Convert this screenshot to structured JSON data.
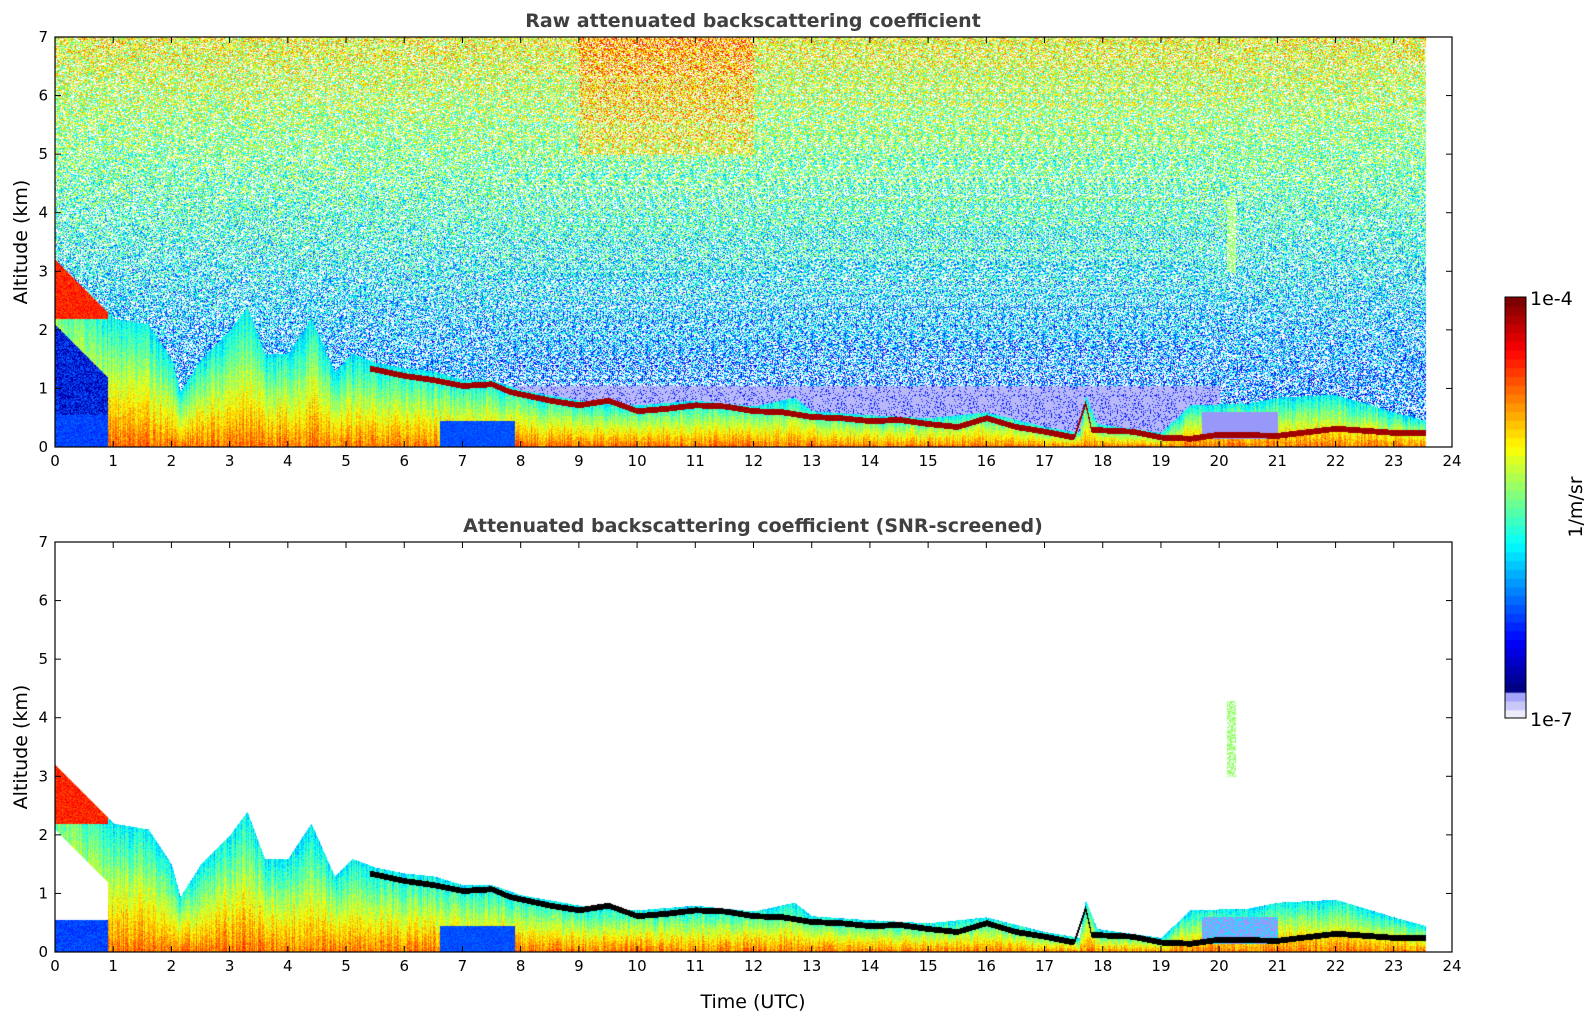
{
  "chart_data": [
    {
      "type": "heatmap",
      "title": "Raw attenuated backscattering coefficient",
      "xlabel": "",
      "ylabel": "Altitude (km)",
      "xlim": [
        0,
        24
      ],
      "ylim": [
        0,
        7
      ],
      "xticks": [
        "0",
        "1",
        "2",
        "3",
        "4",
        "5",
        "6",
        "7",
        "8",
        "9",
        "10",
        "11",
        "12",
        "13",
        "14",
        "15",
        "16",
        "17",
        "18",
        "19",
        "20",
        "21",
        "22",
        "23",
        "24"
      ],
      "yticks": [
        "0",
        "1",
        "2",
        "3",
        "4",
        "5",
        "6",
        "7"
      ],
      "screened": false
    },
    {
      "type": "heatmap",
      "title": "Attenuated backscattering coefficient (SNR-screened)",
      "xlabel": "Time (UTC)",
      "ylabel": "Altitude (km)",
      "xlim": [
        0,
        24
      ],
      "ylim": [
        0,
        7
      ],
      "xticks": [
        "0",
        "1",
        "2",
        "3",
        "4",
        "5",
        "6",
        "7",
        "8",
        "9",
        "10",
        "11",
        "12",
        "13",
        "14",
        "15",
        "16",
        "17",
        "18",
        "19",
        "20",
        "21",
        "22",
        "23",
        "24"
      ],
      "yticks": [
        "0",
        "1",
        "2",
        "3",
        "4",
        "5",
        "6",
        "7"
      ],
      "screened": true
    }
  ],
  "colorbar": {
    "label": "1/m/sr",
    "max_label": "1e-4",
    "min_label": "1e-7",
    "min": 1e-07,
    "max": 0.0001,
    "scale": "log",
    "colormap": "jet"
  },
  "features": {
    "data_end_hour": 23.55,
    "strong_layer_km": [
      [
        5.4,
        1.35
      ],
      [
        6,
        1.22
      ],
      [
        6.5,
        1.15
      ],
      [
        7,
        1.05
      ],
      [
        7.5,
        1.08
      ],
      [
        7.8,
        0.95
      ],
      [
        8.5,
        0.8
      ],
      [
        9,
        0.72
      ],
      [
        9.5,
        0.8
      ],
      [
        10,
        0.62
      ],
      [
        10.5,
        0.66
      ],
      [
        11,
        0.72
      ],
      [
        11.5,
        0.7
      ],
      [
        12,
        0.62
      ],
      [
        12.5,
        0.6
      ],
      [
        13,
        0.52
      ],
      [
        13.5,
        0.5
      ],
      [
        14,
        0.45
      ],
      [
        14.5,
        0.47
      ],
      [
        15,
        0.4
      ],
      [
        15.5,
        0.35
      ],
      [
        16,
        0.5
      ],
      [
        16.5,
        0.35
      ],
      [
        17,
        0.27
      ],
      [
        17.5,
        0.17
      ],
      [
        17.7,
        0.75
      ],
      [
        17.8,
        0.3
      ],
      [
        18.5,
        0.27
      ],
      [
        19,
        0.17
      ],
      [
        19.5,
        0.15
      ],
      [
        20,
        0.22
      ],
      [
        21,
        0.2
      ],
      [
        22,
        0.32
      ],
      [
        23,
        0.25
      ],
      [
        23.55,
        0.25
      ]
    ],
    "aerosol_top_km": [
      [
        0,
        3.2
      ],
      [
        0.5,
        2.7
      ],
      [
        1,
        2.2
      ],
      [
        1.6,
        2.1
      ],
      [
        2,
        1.5
      ],
      [
        2.15,
        0.95
      ],
      [
        2.5,
        1.5
      ],
      [
        3,
        2.0
      ],
      [
        3.3,
        2.4
      ],
      [
        3.6,
        1.6
      ],
      [
        4,
        1.6
      ],
      [
        4.4,
        2.2
      ],
      [
        4.8,
        1.3
      ],
      [
        5.1,
        1.6
      ],
      [
        5.5,
        1.45
      ],
      [
        6,
        1.35
      ],
      [
        6.5,
        1.3
      ],
      [
        7,
        1.15
      ],
      [
        7.5,
        1.15
      ],
      [
        8,
        0.98
      ],
      [
        9,
        0.8
      ],
      [
        10,
        0.72
      ],
      [
        11,
        0.8
      ],
      [
        12,
        0.7
      ],
      [
        12.7,
        0.85
      ],
      [
        13,
        0.62
      ],
      [
        14,
        0.55
      ],
      [
        15,
        0.5
      ],
      [
        16,
        0.6
      ],
      [
        17,
        0.35
      ],
      [
        17.6,
        0.25
      ],
      [
        17.7,
        0.9
      ],
      [
        17.9,
        0.4
      ],
      [
        19,
        0.25
      ],
      [
        19.5,
        0.72
      ],
      [
        20.5,
        0.75
      ],
      [
        21,
        0.85
      ],
      [
        22,
        0.9
      ],
      [
        23,
        0.6
      ],
      [
        23.55,
        0.45
      ]
    ],
    "cloud": {
      "hour": 20.2,
      "base_km": 3.0,
      "top_km": 4.3
    }
  }
}
